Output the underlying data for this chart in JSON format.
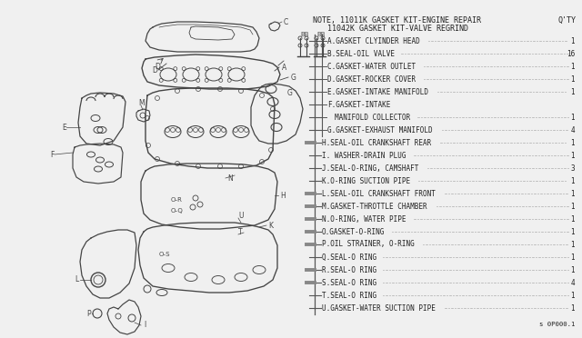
{
  "bg_color": "#f0f0f0",
  "title1": "NOTE, 11011K GASKET KIT-ENGINE REPAIR",
  "title1_qty": "Q'TY",
  "title2": "11042K GASKET KIT-VALVE REGRIND",
  "parts": [
    {
      "label": "A.GASKET CLYINDER HEAD",
      "qty": "1",
      "thick": false
    },
    {
      "label": "B.SEAL-OIL VALVE",
      "qty": "16",
      "thick": false
    },
    {
      "label": "C.GASKET-WATER OUTLET",
      "qty": "1",
      "thick": false
    },
    {
      "label": "D.GASKET-ROCKER COVER",
      "qty": "1",
      "thick": false
    },
    {
      "label": "E.GASKET-INTAKE MANIFOLD",
      "qty": "1",
      "thick": false
    },
    {
      "label": "F.GASKET-INTAKE",
      "qty": "",
      "thick": false
    },
    {
      "label": "  MANIFOLD COLLECTOR",
      "qty": "1",
      "thick": false
    },
    {
      "label": "G.GASKET-EXHAUST MANIFOLD",
      "qty": "4",
      "thick": false
    },
    {
      "label": "H.SEAL-OIL CRANKSHAFT REAR",
      "qty": "1",
      "thick": true
    },
    {
      "label": "I. WASHER-DRAIN PLUG",
      "qty": "1",
      "thick": false
    },
    {
      "label": "J.SEAL-O-RING, CAMSHAFT",
      "qty": "3",
      "thick": false
    },
    {
      "label": "K.O-RING SUCTION PIPE",
      "qty": "1",
      "thick": false
    },
    {
      "label": "L.SEAL-OIL CRANKSHAFT FRONT",
      "qty": "1",
      "thick": true
    },
    {
      "label": "M.GASKET-THROTTLE CHAMBER",
      "qty": "1",
      "thick": true
    },
    {
      "label": "N.O-RING, WATER PIPE",
      "qty": "1",
      "thick": true
    },
    {
      "label": "O.GASKET-O-RING",
      "qty": "1",
      "thick": true
    },
    {
      "label": "P.OIL STRAINER, O-RING",
      "qty": "1",
      "thick": true
    },
    {
      "label": "Q.SEAL-O RING",
      "qty": "1",
      "thick": false
    },
    {
      "label": "R.SEAL-O RING",
      "qty": "1",
      "thick": true
    },
    {
      "label": "S.SEAL-O RING",
      "qty": "4",
      "thick": true
    },
    {
      "label": "T.SEAL-O RING",
      "qty": "1",
      "thick": false
    },
    {
      "label": "U.GASKET-WATER SUCTION PIPE",
      "qty": "1",
      "thick": false
    }
  ],
  "footer": "s 0P000.1",
  "text_color": "#222222",
  "diagram_color": "#444444",
  "font_size_title": 6.0,
  "font_size_parts": 5.5,
  "font_size_label": 5.2
}
